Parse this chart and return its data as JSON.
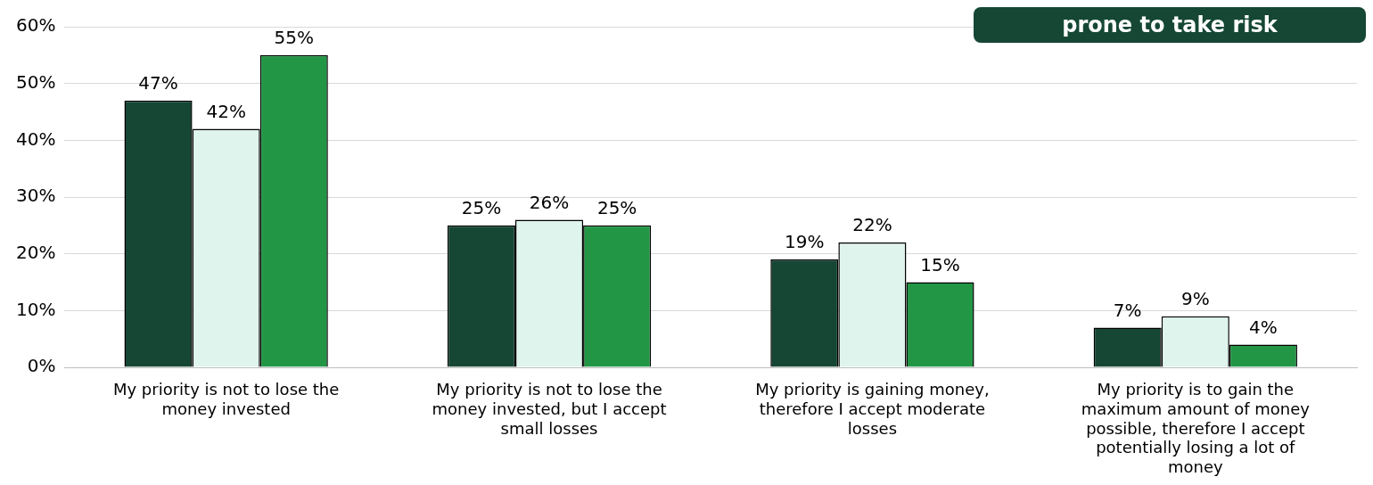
{
  "chart_data": {
    "type": "bar",
    "categories": [
      "My priority is not to lose the money invested",
      "My priority is not to lose the money invested, but I accept small losses",
      "My priority is gaining money, therefore I accept moderate losses",
      "My priority is to gain the maximum amount of money possible, therefore I accept potentially losing a lot of money"
    ],
    "series": [
      {
        "color": "#154734",
        "values": [
          47,
          25,
          19,
          7
        ],
        "value_labels": [
          "47%",
          "25%",
          "19%",
          "7%"
        ]
      },
      {
        "color": "#dff4ec",
        "values": [
          42,
          26,
          22,
          9
        ],
        "value_labels": [
          "42%",
          "26%",
          "22%",
          "9%"
        ]
      },
      {
        "color": "#239645",
        "values": [
          55,
          25,
          15,
          4
        ],
        "value_labels": [
          "55%",
          "25%",
          "15%",
          "4%"
        ]
      }
    ],
    "ylim": [
      0,
      60
    ],
    "yticks": [
      {
        "value": 0,
        "label": "0%"
      },
      {
        "value": 10,
        "label": "10%"
      },
      {
        "value": 20,
        "label": "20%"
      },
      {
        "value": 30,
        "label": "30%"
      },
      {
        "value": 40,
        "label": "40%"
      },
      {
        "value": 50,
        "label": "50%"
      },
      {
        "value": 60,
        "label": "60%"
      }
    ],
    "grid": "y",
    "legend": false,
    "annotations": [
      "prone to take risk"
    ]
  }
}
